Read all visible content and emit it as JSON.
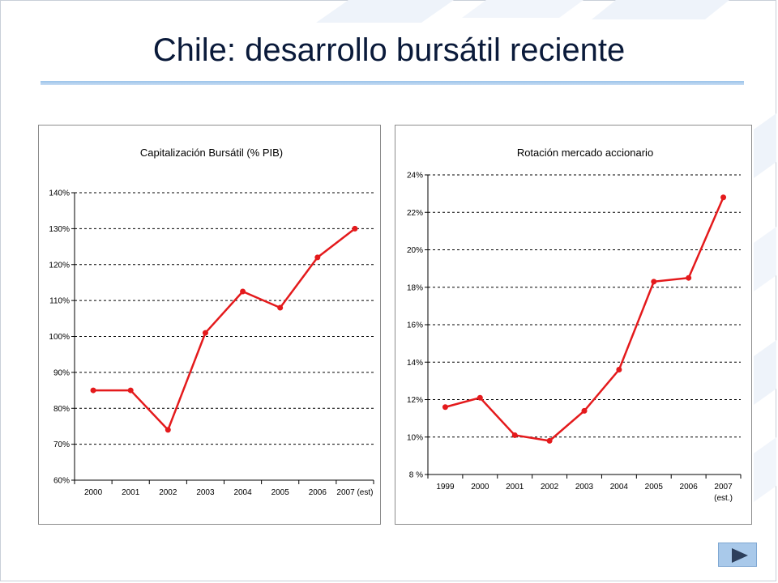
{
  "slide": {
    "title": "Chile: desarrollo bursátil reciente"
  },
  "colors": {
    "series": "#e41a1c",
    "accent_rule": "#9cc3ea",
    "nav_button": "#a9c9ea"
  },
  "nav": {
    "next_icon": "play-arrow-icon"
  },
  "chart_data": [
    {
      "type": "line",
      "title": "Capitalización Bursátil (% PIB)",
      "categories": [
        "2000",
        "2001",
        "2002",
        "2003",
        "2004",
        "2005",
        "2006",
        "2007 (est)"
      ],
      "series": [
        {
          "values": [
            85,
            85,
            74,
            101,
            112.5,
            108,
            122,
            130
          ]
        }
      ],
      "y_ticks": [
        "60%",
        "70%",
        "80%",
        "90%",
        "100%",
        "110%",
        "120%",
        "130%",
        "140%"
      ],
      "ylim": [
        60,
        140
      ],
      "grid": true,
      "grid_style": "dashed"
    },
    {
      "type": "line",
      "title": "Rotación mercado accionario",
      "categories": [
        "1999",
        "2000",
        "2001",
        "2002",
        "2003",
        "2004",
        "2005",
        "2006",
        "2007 (est.)"
      ],
      "series": [
        {
          "values": [
            11.6,
            12.1,
            10.1,
            9.8,
            11.4,
            13.6,
            18.3,
            18.5,
            22.8
          ]
        }
      ],
      "y_ticks": [
        "8 %",
        "10%",
        "12%",
        "14%",
        "16%",
        "18%",
        "20%",
        "22%",
        "24%"
      ],
      "ylim": [
        8,
        24
      ],
      "grid": true,
      "grid_style": "dashed"
    }
  ]
}
